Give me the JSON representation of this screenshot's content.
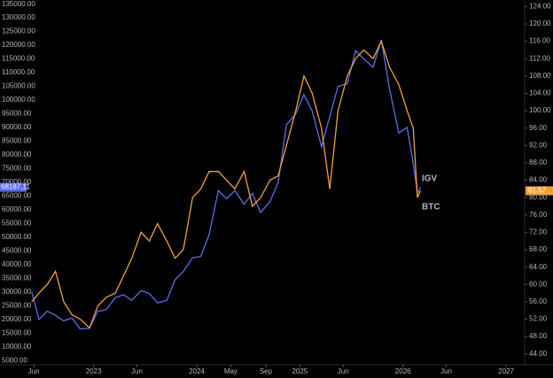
{
  "chart_data": {
    "type": "line",
    "x": [
      2022.4,
      2022.47,
      2022.55,
      2022.63,
      2022.71,
      2022.79,
      2022.87,
      2022.96,
      2023.04,
      2023.12,
      2023.21,
      2023.29,
      2023.37,
      2023.46,
      2023.54,
      2023.62,
      2023.71,
      2023.79,
      2023.87,
      2023.96,
      2024.04,
      2024.12,
      2024.21,
      2024.29,
      2024.37,
      2024.46,
      2024.54,
      2024.62,
      2024.71,
      2024.79,
      2024.87,
      2024.96,
      2025.04,
      2025.12,
      2025.21,
      2025.29,
      2025.37,
      2025.46,
      2025.54,
      2025.62,
      2025.71,
      2025.79,
      2025.87,
      2025.96,
      2026.04,
      2026.1,
      2026.14,
      2026.17
    ],
    "series": [
      {
        "name": "BTC",
        "color": "#5b6ee8",
        "values": [
          30000,
          20000,
          23000,
          21500,
          19500,
          20500,
          16500,
          16800,
          23000,
          23500,
          28000,
          29000,
          27000,
          30500,
          29500,
          26000,
          27000,
          34500,
          37500,
          42500,
          43000,
          51000,
          67000,
          64000,
          67000,
          62000,
          66000,
          59000,
          63000,
          70000,
          91000,
          95000,
          102000,
          96000,
          83000,
          94000,
          105000,
          106000,
          118000,
          115000,
          112000,
          122000,
          104000,
          88000,
          90000,
          77000,
          66000,
          68187.11
        ]
      },
      {
        "name": "IGV",
        "color": "#f0a23a",
        "axis": "y2",
        "values": [
          56,
          58,
          60,
          63,
          56,
          53,
          52,
          50,
          55,
          57,
          58,
          62,
          66,
          72,
          70,
          74,
          70,
          66,
          68,
          80,
          82,
          86,
          86,
          84,
          82,
          86,
          78,
          80,
          84,
          85,
          92,
          100,
          108,
          104,
          96,
          82,
          100,
          108,
          112,
          114,
          112,
          116,
          110,
          106,
          100,
          96,
          80,
          81.57
        ]
      }
    ],
    "xlim": [
      2022.35,
      2027.18
    ],
    "xticks": [
      {
        "value": 2022.42,
        "label": "Jun"
      },
      {
        "value": 2023,
        "label": "2023"
      },
      {
        "value": 2023.42,
        "label": "Jun"
      },
      {
        "value": 2024,
        "label": "2024"
      },
      {
        "value": 2024.33,
        "label": "May"
      },
      {
        "value": 2024.67,
        "label": "Sep"
      },
      {
        "value": 2025,
        "label": "2025"
      },
      {
        "value": 2025.42,
        "label": "Jun"
      },
      {
        "value": 2026,
        "label": "2026"
      },
      {
        "value": 2026.42,
        "label": "Jun"
      },
      {
        "value": 2027,
        "label": "2027"
      }
    ],
    "ylim": [
      3500,
      136500
    ],
    "yticks": [
      {
        "value": 5000,
        "label": "5000.00"
      },
      {
        "value": 10000,
        "label": "10000.00"
      },
      {
        "value": 15000,
        "label": "15000.00"
      },
      {
        "value": 20000,
        "label": "20000.00"
      },
      {
        "value": 25000,
        "label": "25000.00"
      },
      {
        "value": 30000,
        "label": "30000.00"
      },
      {
        "value": 35000,
        "label": "35000.00"
      },
      {
        "value": 40000,
        "label": "40000.00"
      },
      {
        "value": 45000,
        "label": "45000.00"
      },
      {
        "value": 50000,
        "label": "50000.00"
      },
      {
        "value": 55000,
        "label": "55000.00"
      },
      {
        "value": 60000,
        "label": "60000.00"
      },
      {
        "value": 65000,
        "label": "65000.00"
      },
      {
        "value": 70000,
        "label": "70000.00"
      },
      {
        "value": 75000,
        "label": "75000.00"
      },
      {
        "value": 80000,
        "label": "80000.00"
      },
      {
        "value": 85000,
        "label": "85000.00"
      },
      {
        "value": 90000,
        "label": "90000.00"
      },
      {
        "value": 95000,
        "label": "95000.00"
      },
      {
        "value": 100000,
        "label": "100000.00"
      },
      {
        "value": 105000,
        "label": "105000.00"
      },
      {
        "value": 110000,
        "label": "110000.00"
      },
      {
        "value": 115000,
        "label": "115000.00"
      },
      {
        "value": 120000,
        "label": "120000.00"
      },
      {
        "value": 125000,
        "label": "125000.00"
      },
      {
        "value": 130000,
        "label": "130000.00"
      },
      {
        "value": 135000,
        "label": "135000.00"
      }
    ],
    "y2lim": [
      41.5,
      125.5
    ],
    "y2ticks": [
      {
        "value": 44,
        "label": "44.00"
      },
      {
        "value": 48,
        "label": "48.00"
      },
      {
        "value": 52,
        "label": "52.00"
      },
      {
        "value": 56,
        "label": "56.00"
      },
      {
        "value": 60,
        "label": "60.00"
      },
      {
        "value": 64,
        "label": "64.00"
      },
      {
        "value": 68,
        "label": "68.00"
      },
      {
        "value": 72,
        "label": "72.00"
      },
      {
        "value": 76,
        "label": "76.00"
      },
      {
        "value": 80,
        "label": "80.00"
      },
      {
        "value": 84,
        "label": "84.00"
      },
      {
        "value": 88,
        "label": "88.00"
      },
      {
        "value": 92,
        "label": "92.00"
      },
      {
        "value": 96,
        "label": "96.00"
      },
      {
        "value": 100,
        "label": "100.00"
      },
      {
        "value": 104,
        "label": "104.00"
      },
      {
        "value": 108,
        "label": "108.00"
      },
      {
        "value": 112,
        "label": "112.00"
      },
      {
        "value": 116,
        "label": "116.00"
      },
      {
        "value": 120,
        "label": "120.00"
      },
      {
        "value": 124,
        "label": "124.00"
      }
    ],
    "grid": false
  }
}
